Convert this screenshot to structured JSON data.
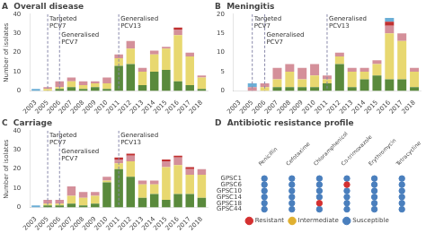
{
  "chart_data": [
    {
      "type": "bar",
      "title": "A  Overall disease",
      "ylabel": "Number of isolates",
      "categories": [
        "2003",
        "2005",
        "2006",
        "2007",
        "2008",
        "2009",
        "2010",
        "2011",
        "2012",
        "2013",
        "2014",
        "2015",
        "2016",
        "2017",
        "2018"
      ],
      "stacked": true,
      "grid": false,
      "series": [
        {
          "color": "#5a8a3c",
          "values": [
            0,
            0,
            1,
            2,
            1,
            2,
            1,
            13,
            14,
            3,
            10,
            11,
            5,
            3,
            1
          ]
        },
        {
          "color": "#e8d870",
          "values": [
            0,
            1,
            1,
            3,
            2,
            2,
            3,
            4,
            8,
            7,
            9,
            11,
            24,
            15,
            6
          ]
        },
        {
          "color": "#d4909a",
          "values": [
            0,
            1,
            3,
            2,
            2,
            1,
            3,
            2,
            4,
            2,
            2,
            1,
            3,
            2,
            1
          ]
        },
        {
          "color": "#c03030",
          "values": [
            0,
            0,
            0,
            0,
            0,
            0,
            0,
            0,
            0,
            0,
            0,
            0,
            1,
            0,
            0
          ]
        },
        {
          "color": "#6baed6",
          "values": [
            1,
            0,
            0,
            0,
            0,
            0,
            0,
            0,
            0,
            0,
            0,
            0,
            0,
            0,
            0
          ]
        }
      ],
      "ylim": [
        0,
        40
      ],
      "yticks": [
        0,
        10,
        20,
        30,
        40
      ],
      "annotations": [
        {
          "text": "Targeted\nPCV7",
          "x": "2005",
          "color": "#8888aa"
        },
        {
          "text": "Generalised\nPCV7",
          "x": "2006",
          "color": "#8888aa"
        },
        {
          "text": "Generalised\nPCV13",
          "x": "2011",
          "color": "#8888aa"
        }
      ]
    },
    {
      "type": "bar",
      "title": "B  Meningitis",
      "categories": [
        "2003",
        "2005",
        "2006",
        "2007",
        "2008",
        "2009",
        "2010",
        "2011",
        "2012",
        "2013",
        "2014",
        "2015",
        "2016",
        "2017",
        "2018"
      ],
      "stacked": true,
      "grid": false,
      "series": [
        {
          "color": "#5a8a3c",
          "values": [
            0,
            0,
            0,
            1,
            1,
            1,
            1,
            2,
            7,
            1,
            3,
            4,
            3,
            3,
            1
          ]
        },
        {
          "color": "#e8d870",
          "values": [
            0,
            0,
            1,
            2,
            4,
            2,
            3,
            1,
            2,
            4,
            2,
            3,
            12,
            10,
            4
          ]
        },
        {
          "color": "#d4909a",
          "values": [
            0,
            1,
            1,
            3,
            2,
            3,
            3,
            1,
            1,
            1,
            1,
            1,
            2,
            2,
            1
          ]
        },
        {
          "color": "#c03030",
          "values": [
            0,
            0,
            0,
            0,
            0,
            0,
            0,
            0,
            0,
            0,
            0,
            0,
            1,
            0,
            0
          ]
        },
        {
          "color": "#6baed6",
          "values": [
            0,
            1,
            0,
            0,
            0,
            0,
            0,
            0,
            0,
            0,
            0,
            0,
            1,
            0,
            0
          ]
        }
      ],
      "ylim": [
        0,
        20
      ],
      "yticks": [
        0,
        5,
        10,
        15,
        20
      ],
      "annotations": [
        {
          "text": "Targeted\nPCV7",
          "x": "2005",
          "color": "#8888aa"
        },
        {
          "text": "Generalised\nPCV7",
          "x": "2006",
          "color": "#8888aa"
        },
        {
          "text": "Generalised\nPCV13",
          "x": "2011",
          "color": "#8888aa"
        }
      ]
    },
    {
      "type": "bar",
      "title": "C  Carriage",
      "ylabel": "Number of isolates",
      "categories": [
        "2003",
        "2005",
        "2006",
        "2007",
        "2008",
        "2009",
        "2010",
        "2011",
        "2012",
        "2013",
        "2014",
        "2015",
        "2016",
        "2017",
        "2018"
      ],
      "stacked": true,
      "grid": false,
      "series": [
        {
          "color": "#5a8a3c",
          "values": [
            0,
            1,
            1,
            2,
            1,
            2,
            13,
            20,
            16,
            5,
            7,
            4,
            7,
            7,
            5
          ]
        },
        {
          "color": "#e8d870",
          "values": [
            0,
            1,
            1,
            4,
            4,
            4,
            1,
            3,
            8,
            7,
            5,
            17,
            15,
            10,
            12
          ]
        },
        {
          "color": "#d4909a",
          "values": [
            0,
            2,
            2,
            5,
            3,
            2,
            2,
            2,
            3,
            2,
            2,
            3,
            4,
            3,
            3
          ]
        },
        {
          "color": "#c03030",
          "values": [
            0,
            0,
            0,
            0,
            0,
            0,
            0,
            1,
            1,
            0,
            0,
            1,
            1,
            1,
            0
          ]
        },
        {
          "color": "#6baed6",
          "values": [
            1,
            0,
            0,
            0,
            0,
            0,
            0,
            0,
            0,
            0,
            0,
            0,
            0,
            0,
            0
          ]
        }
      ],
      "ylim": [
        0,
        40
      ],
      "yticks": [
        0,
        10,
        20,
        30,
        40
      ],
      "annotations": [
        {
          "text": "Targeted\nPCV7",
          "x": "2005",
          "color": "#8888aa"
        },
        {
          "text": "Generalised\nPCV7",
          "x": "2006",
          "color": "#8888aa"
        },
        {
          "text": "Generalised\nPCV13",
          "x": "2011",
          "color": "#8888aa"
        }
      ]
    },
    {
      "type": "matrix",
      "title": "D  Antibiotic resistance profile",
      "categories": [
        "Penicillin",
        "Cefotaxime",
        "Chloramphenicol",
        "Co-trimoxazole",
        "Erythromycin",
        "Tetracycline"
      ],
      "rows": [
        "GPSC1",
        "GPSC6",
        "GPSC10",
        "GPSC14",
        "GPSC18",
        "GPSC44"
      ],
      "series": [
        {
          "name": "Resistant",
          "color": "#d43030"
        },
        {
          "name": "Intermediate",
          "color": "#e0b030"
        },
        {
          "name": "Susceptible",
          "color": "#4a7fbd"
        }
      ],
      "cells": [
        [
          "Susceptible",
          "Susceptible",
          "Susceptible",
          "Susceptible",
          "Susceptible",
          "Susceptible"
        ],
        [
          "Susceptible",
          "Susceptible",
          "Susceptible",
          "Resistant",
          "Susceptible",
          "Susceptible"
        ],
        [
          "Susceptible",
          "Susceptible",
          "Susceptible",
          "Susceptible",
          "Susceptible",
          "Susceptible"
        ],
        [
          "Susceptible",
          "Susceptible",
          "Susceptible",
          "Susceptible",
          "Susceptible",
          "Susceptible"
        ],
        [
          "Susceptible",
          "Susceptible",
          "Resistant",
          "Susceptible",
          "Susceptible",
          "Susceptible"
        ],
        [
          "Susceptible",
          "Susceptible",
          "Susceptible",
          "Susceptible",
          "Susceptible",
          "Susceptible"
        ]
      ],
      "legend": "bottom",
      "grid": false
    }
  ]
}
